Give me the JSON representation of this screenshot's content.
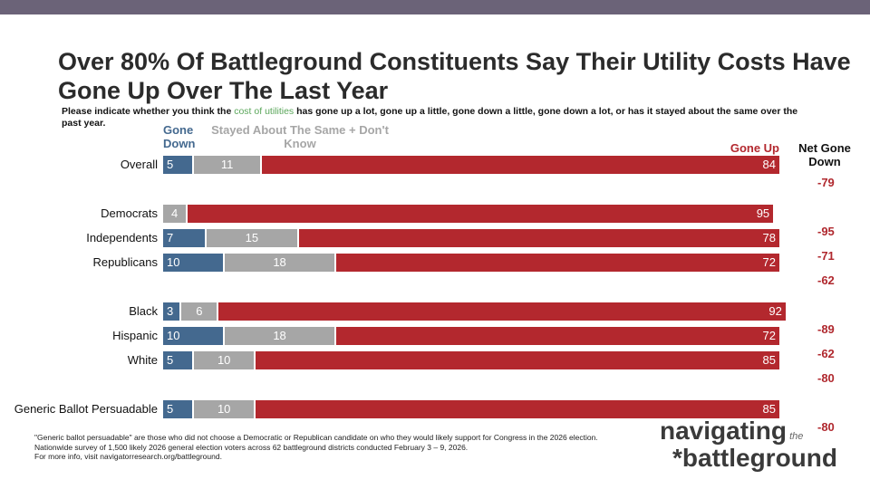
{
  "title": "Over 80% Of Battleground Constituents Say Their Utility Costs Have Gone Up Over The Last Year",
  "subtitle": {
    "pre": "Please indicate whether you think the ",
    "highlight": "cost of utilities",
    "post": " has gone up a lot, gone up a little, gone down a little, gone down a lot, or has it stayed about the same over the past year."
  },
  "chart_data": {
    "type": "bar",
    "orientation": "horizontal",
    "stacked": true,
    "categories": [
      "Overall",
      "Democrats",
      "Independents",
      "Republicans",
      "Black",
      "Hispanic",
      "White",
      "Generic Ballot Persuadable"
    ],
    "series": [
      {
        "name": "Gone Down",
        "color": "#44698f",
        "values": [
          5,
          0,
          7,
          10,
          3,
          10,
          5,
          5
        ]
      },
      {
        "name": "Stayed About The Same + Don't Know",
        "color": "#a6a6a6",
        "values": [
          11,
          4,
          15,
          18,
          6,
          18,
          10,
          10
        ]
      },
      {
        "name": "Gone Up",
        "color": "#b3282e",
        "values": [
          84,
          95,
          78,
          72,
          92,
          72,
          85,
          85
        ]
      }
    ],
    "net_label": "Net Gone Down",
    "net_values": [
      "-79",
      "-95",
      "-71",
      "-62",
      "-89",
      "-62",
      "-80",
      "-80"
    ]
  },
  "footnotes": [
    "\"Generic ballot persuadable\" are those who did not choose a Democratic or Republican candidate on who they would likely support for Congress in the 2026 election.",
    "Nationwide survey of 1,500 likely 2026 general election voters across 62 battleground districts conducted February 3 – 9, 2026.",
    "For more info, visit navigatorresearch.org/battleground."
  ],
  "logo": "navigating the battleground"
}
